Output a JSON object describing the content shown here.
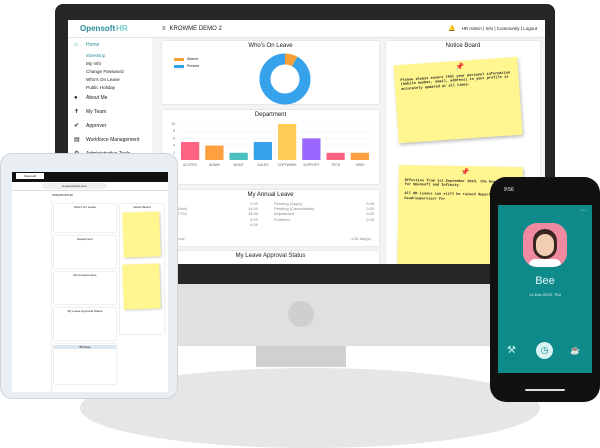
{
  "desktop": {
    "brand": {
      "name": "Opensoft",
      "suffix": "HR"
    },
    "company": "KROWME DEMO 2",
    "menu_icon": "hamburger-icon",
    "top_links": [
      "HR Admin",
      "Info",
      "Community",
      "Logout"
    ],
    "notification_count": "0",
    "sidebar": {
      "home": "Home",
      "home_items": [
        "eDesktop",
        "My Info",
        "Change Password",
        "Who's On Leave",
        "Public Holiday"
      ],
      "sections": [
        {
          "label": "About Me",
          "icon": "person-icon"
        },
        {
          "label": "My Team",
          "icon": "team-icon"
        },
        {
          "label": "Approver",
          "icon": "check-badge-icon"
        },
        {
          "label": "Workforce Management",
          "icon": "clipboard-icon"
        },
        {
          "label": "Administrative Tools",
          "icon": "gears-icon"
        }
      ]
    },
    "whos_on_leave": {
      "title": "Who's On Leave",
      "legend": [
        {
          "label": "Absent",
          "color": "#f7a035"
        },
        {
          "label": "Present",
          "color": "#36a2eb"
        }
      ],
      "absent_fraction": 0.08
    },
    "department": {
      "title": "Department"
    },
    "annual_leave": {
      "title": "My Annual Leave",
      "left": [
        [
          "",
          "0.00"
        ],
        [
          "ment (Total)",
          "14.00"
        ],
        [
          "ment (YTD)",
          "15.50"
        ],
        [
          "",
          "6.00"
        ],
        [
          "Taken",
          "6.00"
        ]
      ],
      "right": [
        [
          "Pending (Apply)",
          "0.00"
        ],
        [
          "Pending (Cancellation)",
          "0.00"
        ],
        [
          "Adjustment",
          "0.00"
        ],
        [
          "Forfeited",
          "0.00"
        ]
      ],
      "balance_label": "le Balance",
      "balance_value": "-1.50 day(s)"
    },
    "approval_status": {
      "title": "My Leave Approval Status"
    },
    "notice_board": {
      "title": "Notice Board",
      "notes": [
        "Please always ensure that your personal information (mobile number, email, address) in your profile is accurately updated at all times.",
        "Effective from 1st September 2023, the head of HR for Opensoft and Infinity.\n\nAll HR issues can still be raised department head/supervisor for"
      ]
    }
  },
  "chart_data": {
    "type": "bar",
    "title": "Department",
    "categories": [
      "ACCPRC",
      "ADMIN",
      "MGMT",
      "SALES",
      "SOFTWARE",
      "SUPPORT",
      "TECH",
      "VIRDI"
    ],
    "values": [
      5,
      4,
      2,
      5,
      10,
      6,
      2,
      2
    ],
    "colors": [
      "#ff6384",
      "#ff9f40",
      "#4bc0c0",
      "#36a2eb",
      "#ffcd56",
      "#9966ff",
      "#ff6384",
      "#ff9f40"
    ],
    "yticks": [
      2,
      4,
      6,
      8,
      10
    ],
    "ylim": [
      0,
      10
    ],
    "grid": true
  },
  "tablet": {
    "tab": "Opensoft",
    "url": "● opsconnect.com",
    "company": "OPENSOFTHR",
    "sections": [
      "Who's On Leave",
      "Department",
      "My Annual Leave",
      "My Leave Approval Status",
      "Birthday",
      "Notice Board"
    ]
  },
  "phone": {
    "time": "9:56",
    "name": "Bee",
    "date": "14 Dec 2023, Thu",
    "more_icon": "ellipsis-icon",
    "icons": [
      "tools-icon",
      "clock-icon",
      "cup-icon"
    ]
  }
}
